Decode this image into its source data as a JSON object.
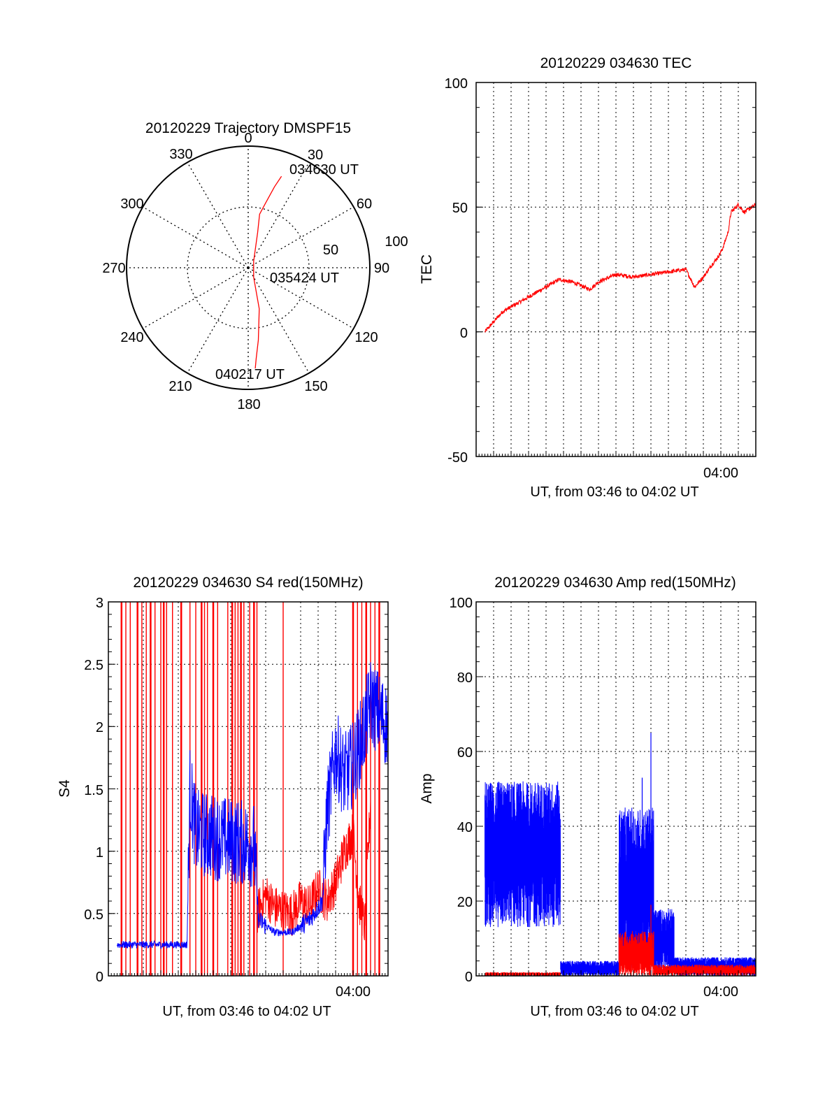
{
  "colors": {
    "red": "#ff0000",
    "blue": "#0000ff",
    "axis": "#000000",
    "grid": "#000000",
    "background": "#ffffff"
  },
  "chart_data": [
    {
      "id": "trajectory",
      "type": "polar",
      "title": "20120229 Trajectory DMSPF15",
      "angular_ticks": [
        "0",
        "30",
        "60",
        "90",
        "120",
        "150",
        "180",
        "210",
        "240",
        "270",
        "300",
        "330"
      ],
      "radial_ticks": [
        "50",
        "100"
      ],
      "radial_max": 100,
      "grid": true,
      "series": [
        {
          "color": "red",
          "points_az_zen": [
            [
              20,
              80
            ],
            [
              18,
              70
            ],
            [
              15,
              55
            ],
            [
              12,
              45
            ],
            [
              15,
              30
            ],
            [
              40,
              7
            ],
            [
              150,
              9
            ],
            [
              165,
              35
            ],
            [
              172,
              60
            ],
            [
              175,
              75
            ],
            [
              176,
              83
            ]
          ]
        }
      ],
      "annotations": [
        "034630 UT",
        "035424 UT",
        "040217 UT"
      ]
    },
    {
      "id": "tec",
      "type": "line",
      "title": "20120229 034630 TEC",
      "ylabel": "TEC",
      "xlabel": "UT, from 03:46 to 04:02 UT",
      "xtick_label": "04:00",
      "xlim": [
        "03:46",
        "04:02"
      ],
      "ylim": [
        -50,
        100
      ],
      "yticks": [
        "-50",
        "0",
        "50",
        "100"
      ],
      "grid": true,
      "series": [
        {
          "color": "red",
          "points": [
            [
              "03:46:30",
              0
            ],
            [
              "03:47:00",
              4
            ],
            [
              "03:47:30",
              8
            ],
            [
              "03:48:00",
              10
            ],
            [
              "03:49:00",
              14
            ],
            [
              "03:50:00",
              18
            ],
            [
              "03:50:45",
              21
            ],
            [
              "03:51:30",
              20
            ],
            [
              "03:52:30",
              17
            ],
            [
              "03:53:00",
              20
            ],
            [
              "03:54:00",
              23
            ],
            [
              "03:55:00",
              22
            ],
            [
              "03:56:00",
              23
            ],
            [
              "03:57:00",
              24
            ],
            [
              "03:58:00",
              25
            ],
            [
              "03:58:30",
              18
            ],
            [
              "03:59:00",
              22
            ],
            [
              "03:59:30",
              27
            ],
            [
              "03:59:50",
              30
            ],
            [
              "04:00:05",
              33
            ],
            [
              "04:00:25",
              40
            ],
            [
              "04:00:35",
              48
            ],
            [
              "04:01:00",
              51
            ],
            [
              "04:01:20",
              48
            ],
            [
              "04:02:00",
              51
            ]
          ]
        }
      ]
    },
    {
      "id": "s4",
      "type": "line",
      "title": "20120229 034630 S4 red(150MHz)",
      "ylabel": "S4",
      "xlabel": "UT, from 03:46 to 04:02 UT",
      "xtick_label": "04:00",
      "xlim": [
        "03:46",
        "04:02"
      ],
      "ylim": [
        0,
        3
      ],
      "yticks": [
        "0",
        "0.5",
        "1",
        "1.5",
        "2",
        "2.5",
        "3"
      ],
      "grid": true,
      "series": [
        {
          "color": "blue",
          "points": [
            [
              "03:46:30",
              0.25
            ],
            [
              "03:50:30",
              0.25
            ],
            [
              "03:50:40",
              1.5
            ],
            [
              "03:51:00",
              1.15
            ],
            [
              "03:52:30",
              1.1
            ],
            [
              "03:54:20",
              1.05
            ],
            [
              "03:54:35",
              0.45
            ],
            [
              "03:55:30",
              0.35
            ],
            [
              "03:56:30",
              0.35
            ],
            [
              "03:57:30",
              0.45
            ],
            [
              "03:58:15",
              0.6
            ],
            [
              "03:58:30",
              1.3
            ],
            [
              "03:59:00",
              1.8
            ],
            [
              "03:59:30",
              1.6
            ],
            [
              "04:00:00",
              1.7
            ],
            [
              "04:00:30",
              1.9
            ],
            [
              "04:01:00",
              2.2
            ],
            [
              "04:02:00",
              2.0
            ]
          ]
        },
        {
          "color": "red",
          "points": [
            [
              "03:54:30",
              0.5
            ],
            [
              "03:55:00",
              0.65
            ],
            [
              "03:55:30",
              0.55
            ],
            [
              "03:56:30",
              0.5
            ],
            [
              "03:57:00",
              0.6
            ],
            [
              "03:57:30",
              0.55
            ],
            [
              "03:58:00",
              0.7
            ],
            [
              "03:58:30",
              0.6
            ],
            [
              "03:59:00",
              0.75
            ],
            [
              "03:59:30",
              1.0
            ],
            [
              "04:00:00",
              1.15
            ],
            [
              "04:00:20",
              0.6
            ],
            [
              "04:00:40",
              0.4
            ],
            [
              "04:01:00",
              1.4
            ]
          ]
        }
      ],
      "red_spikes_times": [
        "03:46:45",
        "03:47:00",
        "03:47:15",
        "03:47:40",
        "03:47:55",
        "03:48:10",
        "03:48:25",
        "03:48:40",
        "03:49:00",
        "03:49:10",
        "03:49:20",
        "03:49:40",
        "03:50:10",
        "03:50:40",
        "03:51:00",
        "03:51:20",
        "03:51:30",
        "03:51:40",
        "03:52:00",
        "03:52:15",
        "03:52:50",
        "03:53:05",
        "03:53:15",
        "03:53:25",
        "03:53:35",
        "03:53:45",
        "03:54:05",
        "03:54:20",
        "03:54:30",
        "03:56:00",
        "04:00:00",
        "04:00:15",
        "04:00:30",
        "04:00:45",
        "04:01:00",
        "04:01:15",
        "04:01:30"
      ]
    },
    {
      "id": "amp",
      "type": "line",
      "title": "20120229 034630 Amp red(150MHz)",
      "ylabel": "Amp",
      "xlabel": "UT, from 03:46 to 04:02 UT",
      "xtick_label": "04:00",
      "xlim": [
        "03:46",
        "04:02"
      ],
      "ylim": [
        0,
        100
      ],
      "yticks": [
        "0",
        "20",
        "40",
        "60",
        "80",
        "100"
      ],
      "grid": true,
      "series": [
        {
          "color": "blue",
          "bands": [
            {
              "from": "03:46:30",
              "to": "03:50:50",
              "min": 13,
              "max": 52
            },
            {
              "from": "03:50:50",
              "to": "03:54:10",
              "min": 0,
              "max": 4
            },
            {
              "from": "03:54:10",
              "to": "03:56:10",
              "min": 2,
              "max": 45
            },
            {
              "from": "03:56:10",
              "to": "03:57:20",
              "min": 1,
              "max": 18
            },
            {
              "from": "03:57:20",
              "to": "04:02:00",
              "min": 0,
              "max": 5
            }
          ],
          "peaks": [
            [
              "03:55:30",
              53
            ],
            [
              "03:56:00",
              65
            ]
          ]
        },
        {
          "color": "red",
          "bands": [
            {
              "from": "03:46:30",
              "to": "03:50:50",
              "min": 0,
              "max": 1
            },
            {
              "from": "03:54:10",
              "to": "03:56:10",
              "min": 0,
              "max": 12
            },
            {
              "from": "03:56:10",
              "to": "04:02:00",
              "min": 0,
              "max": 3
            }
          ],
          "peaks": [
            [
              "03:56:00",
              19
            ]
          ]
        }
      ]
    }
  ]
}
